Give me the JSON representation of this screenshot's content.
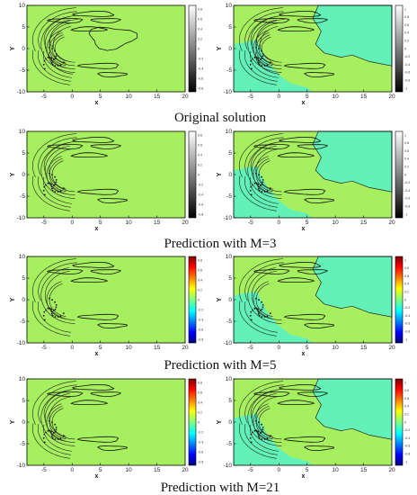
{
  "colors": {
    "field_green": "#a6ef5f",
    "field_teal": "#62f2b7",
    "frame": "#000000"
  },
  "panels": [
    {
      "caption": "Original solution",
      "colorbar": "gray"
    },
    {
      "caption": "Prediction with M=3",
      "colorbar": "gray"
    },
    {
      "caption": "Prediction with M=5",
      "colorbar": "jet"
    },
    {
      "caption": "Prediction with M=21",
      "colorbar": "jet"
    }
  ],
  "chart_data": {
    "type": "heatmap",
    "layout": "4 rows x 2 columns of contour field plots",
    "xlabel": "x",
    "ylabel": "Y",
    "xlim": [
      -8,
      20
    ],
    "ylim": [
      -10,
      10
    ],
    "xticks": [
      "-5",
      "0",
      "5",
      "10",
      "15",
      "20"
    ],
    "yticks": [
      "10",
      "5",
      "0",
      "-5",
      "-10"
    ],
    "colorbar_left_ticks": [
      "0.8",
      "0.6",
      "0.4",
      "0.2",
      "0",
      "-0.2",
      "-0.4",
      "-0.6",
      "-0.8"
    ],
    "colorbar_right_ticks": [
      "1",
      "0.8",
      "0.6",
      "0.4",
      "0.2",
      "0",
      "-0.2",
      "-0.4",
      "-0.6",
      "-0.8",
      "-1"
    ],
    "colormaps": [
      "gray",
      "gray",
      "jet",
      "jet"
    ]
  }
}
